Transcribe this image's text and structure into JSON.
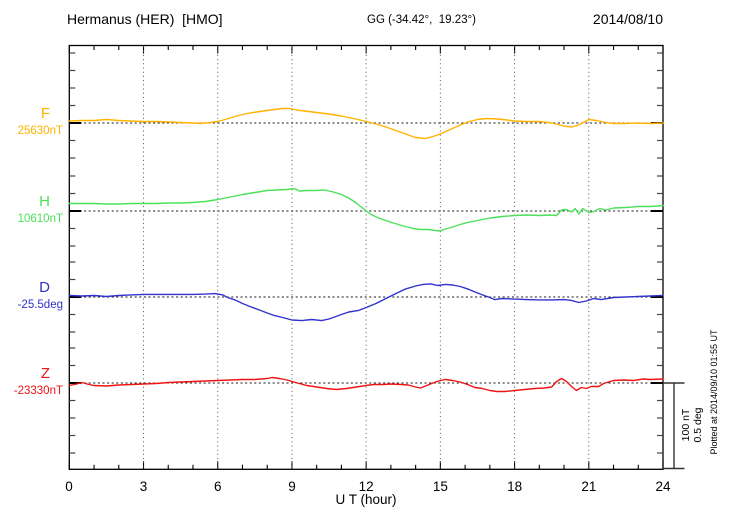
{
  "header": {
    "station": "Hermanus (HER)  [HMO]",
    "coords": "GG (-34.42°,  19.23°)",
    "date": "2014/08/10"
  },
  "footer_note": "Plotted at 2014/09/10 01:55 UT",
  "scalebar": {
    "labels": [
      "100 nT",
      "0.5 deg"
    ],
    "nT_per_bar": 100,
    "deg_per_bar": 0.5
  },
  "chart_data": {
    "type": "line",
    "title": "Hermanus (HER) [HMO] magnetogram 2014/08/10",
    "xlabel": "U T (hour)",
    "x_range": [
      0,
      24
    ],
    "x_ticks": [
      0,
      3,
      6,
      9,
      12,
      15,
      18,
      21,
      24
    ],
    "x_minor_step": 1,
    "grid_hours": [
      3,
      6,
      9,
      12,
      15,
      18,
      21
    ],
    "scale_per_division": {
      "nT": 100,
      "deg": 0.5
    },
    "series": [
      {
        "name": "F",
        "unit": "nT",
        "reference": 25630,
        "ref_label": "25630nT",
        "color": "#FFB300",
        "points": [
          [
            0,
            25632.3
          ],
          [
            0.5,
            25632.9
          ],
          [
            1,
            25632.9
          ],
          [
            1.5,
            25634.1
          ],
          [
            2,
            25632.9
          ],
          [
            2.5,
            25632.3
          ],
          [
            3,
            25631.7
          ],
          [
            3.5,
            25631.7
          ],
          [
            4,
            25631.2
          ],
          [
            4.5,
            25630.6
          ],
          [
            5,
            25630.0
          ],
          [
            5.3,
            25629.4
          ],
          [
            5.7,
            25630.6
          ],
          [
            6,
            25631.7
          ],
          [
            6.3,
            25634.1
          ],
          [
            6.7,
            25637.6
          ],
          [
            7,
            25639.9
          ],
          [
            7.3,
            25641.6
          ],
          [
            7.7,
            25643.4
          ],
          [
            8,
            25644.5
          ],
          [
            8.3,
            25645.7
          ],
          [
            8.6,
            25646.9
          ],
          [
            8.9,
            25646.9
          ],
          [
            9.2,
            25645.1
          ],
          [
            9.5,
            25644.0
          ],
          [
            10,
            25642.2
          ],
          [
            10.5,
            25640.5
          ],
          [
            11,
            25638.1
          ],
          [
            11.5,
            25635.2
          ],
          [
            12,
            25631.7
          ],
          [
            12.4,
            25628.8
          ],
          [
            12.8,
            25625.3
          ],
          [
            13.2,
            25621.3
          ],
          [
            13.6,
            25617.2
          ],
          [
            14,
            25613.1
          ],
          [
            14.4,
            25612.0
          ],
          [
            14.7,
            25614.3
          ],
          [
            15,
            25617.2
          ],
          [
            15.4,
            25622.4
          ],
          [
            15.8,
            25627.7
          ],
          [
            16.1,
            25631.2
          ],
          [
            16.5,
            25634.1
          ],
          [
            16.9,
            25635.2
          ],
          [
            17.3,
            25634.7
          ],
          [
            17.7,
            25633.5
          ],
          [
            18,
            25632.3
          ],
          [
            18.5,
            25631.7
          ],
          [
            19,
            25631.7
          ],
          [
            19.5,
            25630.0
          ],
          [
            20,
            25626.5
          ],
          [
            20.3,
            25625.3
          ],
          [
            20.6,
            25627.7
          ],
          [
            21,
            25634.1
          ],
          [
            21.3,
            25632.9
          ],
          [
            21.7,
            25630.6
          ],
          [
            22,
            25629.4
          ],
          [
            22.5,
            25629.4
          ],
          [
            23,
            25630.0
          ],
          [
            23.5,
            25629.4
          ],
          [
            24,
            25630.0
          ]
        ]
      },
      {
        "name": "H",
        "unit": "nT",
        "reference": 10610,
        "ref_label": "10610nT",
        "color": "#4CE05A",
        "points": [
          [
            0,
            10618.7
          ],
          [
            0.5,
            10618.7
          ],
          [
            1,
            10618.7
          ],
          [
            1.5,
            10618.1
          ],
          [
            2,
            10618.1
          ],
          [
            2.5,
            10618.7
          ],
          [
            3,
            10618.7
          ],
          [
            3.5,
            10618.7
          ],
          [
            4,
            10619.3
          ],
          [
            4.5,
            10619.3
          ],
          [
            5,
            10619.9
          ],
          [
            5.5,
            10621.0
          ],
          [
            6,
            10623.4
          ],
          [
            6.5,
            10626.3
          ],
          [
            7,
            10629.2
          ],
          [
            7.5,
            10631.5
          ],
          [
            8,
            10633.8
          ],
          [
            8.4,
            10634.4
          ],
          [
            8.8,
            10635.0
          ],
          [
            9.1,
            10636.2
          ],
          [
            9.3,
            10633.3
          ],
          [
            9.6,
            10633.8
          ],
          [
            10,
            10633.8
          ],
          [
            10.3,
            10634.4
          ],
          [
            10.6,
            10632.7
          ],
          [
            11,
            10629.2
          ],
          [
            11.3,
            10625.1
          ],
          [
            11.6,
            10619.3
          ],
          [
            11.9,
            10612.3
          ],
          [
            12.2,
            10605.9
          ],
          [
            12.5,
            10601.9
          ],
          [
            12.8,
            10599.0
          ],
          [
            13.1,
            10596.0
          ],
          [
            13.5,
            10592.6
          ],
          [
            13.9,
            10589.7
          ],
          [
            14.2,
            10588.5
          ],
          [
            14.5,
            10588.5
          ],
          [
            14.8,
            10587.3
          ],
          [
            15,
            10586.7
          ],
          [
            15.2,
            10589.1
          ],
          [
            15.5,
            10591.4
          ],
          [
            15.8,
            10594.3
          ],
          [
            16.1,
            10596.7
          ],
          [
            16.5,
            10599.0
          ],
          [
            17,
            10601.9
          ],
          [
            17.5,
            10603.6
          ],
          [
            18,
            10604.8
          ],
          [
            18.5,
            10605.3
          ],
          [
            19,
            10604.8
          ],
          [
            19.4,
            10605.3
          ],
          [
            19.7,
            10604.8
          ],
          [
            19.9,
            10611.2
          ],
          [
            20.1,
            10611.7
          ],
          [
            20.3,
            10608.8
          ],
          [
            20.45,
            10612.9
          ],
          [
            20.6,
            10606.5
          ],
          [
            20.75,
            10612.9
          ],
          [
            21,
            10608.3
          ],
          [
            21.2,
            10609.4
          ],
          [
            21.45,
            10612.9
          ],
          [
            21.7,
            10611.2
          ],
          [
            22,
            10613.5
          ],
          [
            22.5,
            10614.1
          ],
          [
            23,
            10615.2
          ],
          [
            23.5,
            10615.2
          ],
          [
            24,
            10616.4
          ]
        ]
      },
      {
        "name": "D",
        "unit": "deg",
        "reference": -25.5,
        "ref_label": "-25.5deg",
        "color": "#3232CC",
        "points": [
          [
            0,
            -25.491
          ],
          [
            0.5,
            -25.494
          ],
          [
            1,
            -25.491
          ],
          [
            1.5,
            -25.497
          ],
          [
            2,
            -25.491
          ],
          [
            2.5,
            -25.488
          ],
          [
            3,
            -25.485
          ],
          [
            3.5,
            -25.485
          ],
          [
            4,
            -25.485
          ],
          [
            4.5,
            -25.485
          ],
          [
            5,
            -25.485
          ],
          [
            5.5,
            -25.483
          ],
          [
            5.9,
            -25.48
          ],
          [
            6.2,
            -25.488
          ],
          [
            6.4,
            -25.503
          ],
          [
            6.7,
            -25.517
          ],
          [
            7,
            -25.538
          ],
          [
            7.3,
            -25.555
          ],
          [
            7.7,
            -25.576
          ],
          [
            8,
            -25.593
          ],
          [
            8.3,
            -25.608
          ],
          [
            8.7,
            -25.622
          ],
          [
            9,
            -25.634
          ],
          [
            9.4,
            -25.637
          ],
          [
            9.8,
            -25.631
          ],
          [
            10.2,
            -25.637
          ],
          [
            10.5,
            -25.628
          ],
          [
            11,
            -25.602
          ],
          [
            11.3,
            -25.587
          ],
          [
            11.7,
            -25.578
          ],
          [
            12,
            -25.561
          ],
          [
            12.4,
            -25.538
          ],
          [
            12.8,
            -25.509
          ],
          [
            13.2,
            -25.48
          ],
          [
            13.6,
            -25.453
          ],
          [
            14,
            -25.436
          ],
          [
            14.3,
            -25.427
          ],
          [
            14.6,
            -25.424
          ],
          [
            14.9,
            -25.433
          ],
          [
            15.2,
            -25.427
          ],
          [
            15.5,
            -25.43
          ],
          [
            15.8,
            -25.439
          ],
          [
            16.1,
            -25.453
          ],
          [
            16.4,
            -25.471
          ],
          [
            16.7,
            -25.488
          ],
          [
            17,
            -25.503
          ],
          [
            17.2,
            -25.515
          ],
          [
            17.5,
            -25.509
          ],
          [
            18,
            -25.512
          ],
          [
            18.5,
            -25.515
          ],
          [
            19,
            -25.517
          ],
          [
            19.5,
            -25.517
          ],
          [
            20,
            -25.515
          ],
          [
            20.3,
            -25.52
          ],
          [
            20.6,
            -25.532
          ],
          [
            20.9,
            -25.523
          ],
          [
            21.2,
            -25.509
          ],
          [
            21.5,
            -25.515
          ],
          [
            22,
            -25.503
          ],
          [
            22.5,
            -25.5
          ],
          [
            23,
            -25.497
          ],
          [
            23.5,
            -25.494
          ],
          [
            24,
            -25.491
          ]
        ]
      },
      {
        "name": "Z",
        "unit": "nT",
        "reference": -23330,
        "ref_label": "-23330nT",
        "color": "#EE1414",
        "points": [
          [
            0,
            -23332.9
          ],
          [
            0.3,
            -23331.2
          ],
          [
            0.5,
            -23329.4
          ],
          [
            0.8,
            -23331.7
          ],
          [
            1,
            -23332.9
          ],
          [
            1.5,
            -23333.5
          ],
          [
            2,
            -23332.3
          ],
          [
            2.5,
            -23331.7
          ],
          [
            3,
            -23331.2
          ],
          [
            3.5,
            -23330.6
          ],
          [
            4,
            -23329.4
          ],
          [
            4.5,
            -23328.8
          ],
          [
            5,
            -23328.3
          ],
          [
            5.5,
            -23327.7
          ],
          [
            6,
            -23327.1
          ],
          [
            6.5,
            -23326.5
          ],
          [
            7,
            -23325.9
          ],
          [
            7.5,
            -23325.9
          ],
          [
            8,
            -23324.8
          ],
          [
            8.2,
            -23323.6
          ],
          [
            8.5,
            -23324.8
          ],
          [
            8.8,
            -23326.5
          ],
          [
            9,
            -23328.3
          ],
          [
            9.3,
            -23330.6
          ],
          [
            9.6,
            -23332.9
          ],
          [
            10,
            -23334.7
          ],
          [
            10.4,
            -23336.4
          ],
          [
            10.8,
            -23337.6
          ],
          [
            11.2,
            -23336.4
          ],
          [
            11.6,
            -23334.7
          ],
          [
            12,
            -23332.9
          ],
          [
            12.3,
            -23331.7
          ],
          [
            12.7,
            -23331.7
          ],
          [
            13,
            -23331.2
          ],
          [
            13.4,
            -23331.7
          ],
          [
            13.7,
            -23332.3
          ],
          [
            14,
            -23334.7
          ],
          [
            14.2,
            -23335.8
          ],
          [
            14.4,
            -23333.5
          ],
          [
            14.7,
            -23330.0
          ],
          [
            15,
            -23327.1
          ],
          [
            15.2,
            -23325.9
          ],
          [
            15.5,
            -23327.1
          ],
          [
            15.8,
            -23328.8
          ],
          [
            16.1,
            -23331.7
          ],
          [
            16.4,
            -23335.2
          ],
          [
            16.7,
            -23336.4
          ],
          [
            17,
            -23338.7
          ],
          [
            17.3,
            -23339.9
          ],
          [
            17.6,
            -23339.9
          ],
          [
            18,
            -23338.7
          ],
          [
            18.4,
            -23337.6
          ],
          [
            18.8,
            -23336.4
          ],
          [
            19.2,
            -23335.8
          ],
          [
            19.5,
            -23334.7
          ],
          [
            19.7,
            -23328.3
          ],
          [
            19.9,
            -23324.8
          ],
          [
            20.1,
            -23328.3
          ],
          [
            20.3,
            -23334.1
          ],
          [
            20.5,
            -23338.7
          ],
          [
            20.7,
            -23335.2
          ],
          [
            20.9,
            -23336.4
          ],
          [
            21.1,
            -23334.1
          ],
          [
            21.4,
            -23334.1
          ],
          [
            21.6,
            -23330.6
          ],
          [
            22,
            -23327.1
          ],
          [
            22.4,
            -23326.5
          ],
          [
            22.8,
            -23327.1
          ],
          [
            23.2,
            -23325.3
          ],
          [
            23.5,
            -23325.9
          ],
          [
            24,
            -23325.3
          ]
        ]
      }
    ]
  }
}
